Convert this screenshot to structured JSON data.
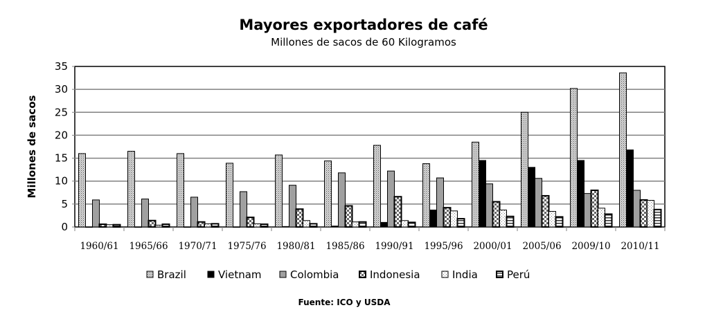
{
  "chart_data": {
    "type": "bar",
    "title": "Mayores exportadores de café",
    "subtitle": "Millones de sacos de 60 Kilogramos",
    "xlabel": "",
    "ylabel": "Millones de sacos",
    "ylim": [
      0,
      35
    ],
    "yticks": [
      0,
      5,
      10,
      15,
      20,
      25,
      30,
      35
    ],
    "grid": true,
    "legend_position": "bottom",
    "categories": [
      "1960/61",
      "1965/66",
      "1970/71",
      "1975/76",
      "1980/81",
      "1985/86",
      "1990/91",
      "1995/96",
      "2000/01",
      "2005/06",
      "2009/10",
      "2010/11"
    ],
    "series": [
      {
        "name": "Brazil",
        "pattern": "dense-dots",
        "values": [
          16,
          16.5,
          16,
          13.9,
          15.7,
          14.4,
          17.8,
          13.8,
          18.5,
          25,
          30.2,
          33.6
        ]
      },
      {
        "name": "Vietnam",
        "pattern": "solid-black",
        "values": [
          0,
          0,
          0,
          0,
          0.1,
          0.2,
          1,
          3.7,
          14.5,
          13,
          14.5,
          16.8
        ]
      },
      {
        "name": "Colombia",
        "pattern": "solid-gray",
        "values": [
          5.9,
          6.1,
          6.5,
          7.7,
          9.1,
          11.8,
          12.2,
          10.7,
          9.4,
          10.6,
          7.3,
          8
        ]
      },
      {
        "name": "Indonesia",
        "pattern": "checker",
        "values": [
          0.6,
          1.4,
          1.1,
          2.1,
          3.9,
          4.6,
          6.6,
          4.2,
          5.5,
          6.8,
          8,
          5.9
        ]
      },
      {
        "name": "India",
        "pattern": "sparse-dots",
        "values": [
          0.5,
          0.4,
          0.7,
          0.7,
          1.4,
          1.1,
          1.4,
          3.5,
          3.7,
          3.4,
          4.1,
          5.8
        ]
      },
      {
        "name": "Perú",
        "pattern": "horizontal-lines",
        "values": [
          0.5,
          0.6,
          0.7,
          0.6,
          0.7,
          1.1,
          1,
          1.8,
          2.3,
          2.2,
          2.8,
          3.8
        ]
      }
    ],
    "source": "Fuente: ICO y USDA"
  }
}
